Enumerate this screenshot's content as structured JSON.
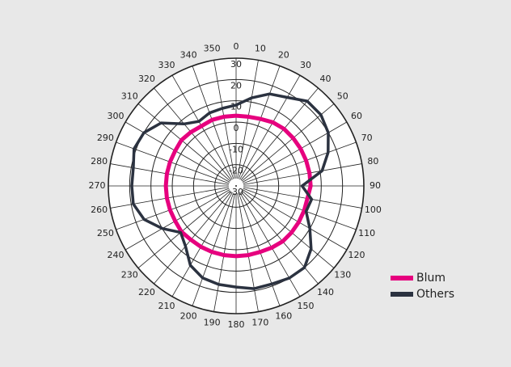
{
  "chart_data": {
    "type": "polar",
    "theta": [
      0,
      10,
      20,
      30,
      40,
      50,
      60,
      70,
      80,
      90,
      100,
      110,
      120,
      130,
      140,
      150,
      160,
      170,
      180,
      190,
      200,
      210,
      220,
      230,
      240,
      250,
      260,
      270,
      280,
      290,
      300,
      310,
      320,
      330,
      340,
      350
    ],
    "rlim": [
      -30,
      30
    ],
    "rticks": [
      -30,
      -20,
      -10,
      0,
      10,
      20,
      30
    ],
    "series": [
      {
        "name": "Blum",
        "color": "#e6007e",
        "values": [
          3,
          3,
          3.5,
          4.5,
          5,
          5,
          5,
          5,
          5,
          5,
          4,
          4,
          4,
          4,
          4,
          3.5,
          3,
          3,
          3,
          3,
          3,
          3,
          3,
          3.5,
          3,
          3,
          3,
          3,
          3,
          3,
          3,
          3.5,
          3,
          2.5,
          3,
          3
        ]
      },
      {
        "name": "Others",
        "color": "#2b3240",
        "values": [
          8,
          12,
          16,
          18,
          22,
          22,
          20,
          16,
          11,
          1,
          6,
          5,
          10,
          16,
          20,
          20,
          19,
          19,
          17.5,
          17,
          16,
          13,
          7,
          4,
          10,
          16,
          19,
          19,
          19,
          21,
          20,
          16,
          8,
          5,
          6.5,
          7
        ]
      }
    ],
    "legend": "lower right"
  }
}
